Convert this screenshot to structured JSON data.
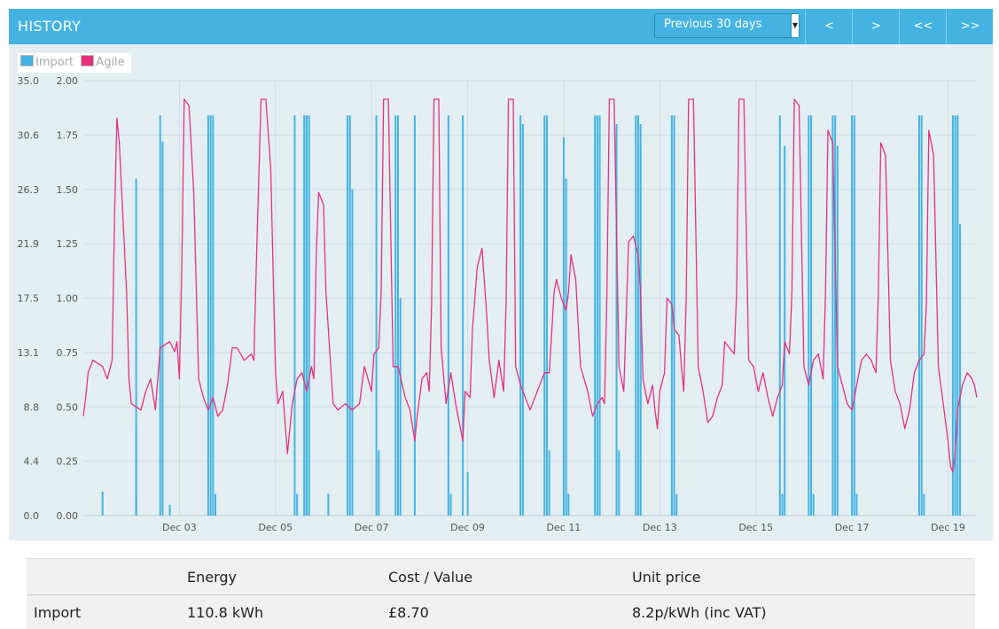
{
  "header": {
    "title": "HISTORY",
    "range_select": "Previous 30 days",
    "nav": [
      "<",
      ">",
      "<<",
      ">>"
    ]
  },
  "colors": {
    "header": "#44b3e2",
    "import": "#44b3e2",
    "agile": "#e8307c",
    "panel": "#e3eef3"
  },
  "legend": [
    {
      "name": "Import",
      "color": "#44b3e2"
    },
    {
      "name": "Agile",
      "color": "#e8307c"
    }
  ],
  "chart_data": {
    "type": "bar+line",
    "x_ticks": [
      "Dec 03",
      "Dec 05",
      "Dec 07",
      "Dec 09",
      "Dec 11",
      "Dec 13",
      "Dec 15",
      "Dec 17",
      "Dec 19"
    ],
    "x_tick_days": [
      3,
      5,
      7,
      9,
      11,
      13,
      15,
      17,
      19
    ],
    "xlim_days": [
      1.0,
      19.6
    ],
    "y_left": {
      "ticks": [
        "0.0",
        "4.4",
        "8.8",
        "13.1",
        "17.5",
        "21.9",
        "26.3",
        "30.6",
        "35.0"
      ],
      "ylim": [
        0,
        35
      ]
    },
    "y_right": {
      "ticks": [
        "0.00",
        "0.25",
        "0.50",
        "0.75",
        "1.00",
        "1.25",
        "1.50",
        "1.75",
        "2.00"
      ],
      "ylim": [
        0,
        2
      ]
    },
    "grid": true,
    "legend_position": "top-left",
    "series": [
      {
        "name": "Import",
        "type": "bar",
        "axis": "right",
        "points": [
          [
            1.4,
            0.11
          ],
          [
            2.1,
            1.55
          ],
          [
            2.1,
            0.4
          ],
          [
            2.1,
            0.1
          ],
          [
            2.6,
            1.84
          ],
          [
            2.65,
            1.72
          ],
          [
            2.8,
            0.05
          ],
          [
            3.6,
            1.84
          ],
          [
            3.65,
            1.84
          ],
          [
            3.7,
            1.84
          ],
          [
            3.75,
            0.1
          ],
          [
            5.4,
            1.84
          ],
          [
            5.45,
            0.1
          ],
          [
            5.6,
            1.84
          ],
          [
            5.6,
            1.84
          ],
          [
            5.65,
            1.84
          ],
          [
            5.7,
            1.84
          ],
          [
            6.5,
            1.84
          ],
          [
            6.55,
            1.84
          ],
          [
            6.6,
            1.5
          ],
          [
            6.1,
            0.1
          ],
          [
            7.1,
            1.84
          ],
          [
            7.15,
            0.3
          ],
          [
            7.5,
            1.84
          ],
          [
            7.55,
            1.84
          ],
          [
            7.6,
            1.0
          ],
          [
            7.9,
            1.84
          ],
          [
            8.6,
            1.84
          ],
          [
            8.65,
            0.1
          ],
          [
            8.9,
            1.84
          ],
          [
            9.0,
            0.2
          ],
          [
            10.1,
            1.84
          ],
          [
            10.15,
            1.8
          ],
          [
            10.6,
            1.84
          ],
          [
            10.65,
            1.84
          ],
          [
            10.7,
            0.3
          ],
          [
            11.0,
            1.74
          ],
          [
            11.05,
            1.55
          ],
          [
            11.1,
            0.1
          ],
          [
            11.65,
            1.84
          ],
          [
            11.7,
            1.84
          ],
          [
            11.75,
            1.84
          ],
          [
            12.1,
            1.8
          ],
          [
            12.15,
            0.3
          ],
          [
            12.5,
            1.84
          ],
          [
            12.55,
            1.84
          ],
          [
            12.6,
            1.8
          ],
          [
            12.6,
            1.7
          ],
          [
            13.25,
            1.84
          ],
          [
            13.3,
            1.84
          ],
          [
            13.35,
            0.1
          ],
          [
            15.5,
            1.84
          ],
          [
            15.55,
            0.1
          ],
          [
            15.6,
            1.7
          ],
          [
            16.1,
            1.84
          ],
          [
            16.15,
            1.84
          ],
          [
            16.2,
            0.1
          ],
          [
            16.6,
            1.84
          ],
          [
            16.65,
            1.84
          ],
          [
            16.7,
            1.7
          ],
          [
            17.0,
            1.84
          ],
          [
            17.05,
            1.84
          ],
          [
            17.1,
            0.1
          ],
          [
            18.4,
            1.84
          ],
          [
            18.45,
            1.84
          ],
          [
            18.5,
            0.1
          ],
          [
            19.1,
            1.84
          ],
          [
            19.15,
            1.84
          ],
          [
            19.2,
            1.84
          ],
          [
            19.25,
            1.34
          ]
        ]
      },
      {
        "name": "Agile",
        "type": "line",
        "axis": "left",
        "points": [
          [
            1.0,
            8.0
          ],
          [
            1.05,
            9.5
          ],
          [
            1.1,
            11.5
          ],
          [
            1.2,
            12.5
          ],
          [
            1.4,
            12.0
          ],
          [
            1.5,
            11.0
          ],
          [
            1.6,
            12.5
          ],
          [
            1.65,
            24.0
          ],
          [
            1.7,
            32.0
          ],
          [
            1.75,
            30.0
          ],
          [
            1.9,
            18.0
          ],
          [
            1.95,
            11.0
          ],
          [
            2.0,
            9.0
          ],
          [
            2.2,
            8.5
          ],
          [
            2.3,
            10.0
          ],
          [
            2.4,
            11.0
          ],
          [
            2.5,
            8.5
          ],
          [
            2.6,
            13.5
          ],
          [
            2.8,
            14.0
          ],
          [
            2.9,
            13.2
          ],
          [
            2.95,
            14.0
          ],
          [
            3.0,
            11.0
          ],
          [
            3.05,
            20.0
          ],
          [
            3.1,
            33.5
          ],
          [
            3.2,
            33.0
          ],
          [
            3.3,
            26.0
          ],
          [
            3.4,
            11.0
          ],
          [
            3.5,
            9.5
          ],
          [
            3.6,
            8.5
          ],
          [
            3.7,
            9.5
          ],
          [
            3.8,
            8.0
          ],
          [
            3.9,
            8.5
          ],
          [
            4.0,
            10.5
          ],
          [
            4.1,
            13.5
          ],
          [
            4.2,
            13.5
          ],
          [
            4.35,
            12.5
          ],
          [
            4.5,
            13.0
          ],
          [
            4.55,
            12.5
          ],
          [
            4.6,
            20.0
          ],
          [
            4.7,
            33.5
          ],
          [
            4.8,
            33.5
          ],
          [
            4.9,
            28.0
          ],
          [
            5.0,
            11.5
          ],
          [
            5.05,
            9.0
          ],
          [
            5.15,
            10.0
          ],
          [
            5.25,
            5.0
          ],
          [
            5.35,
            9.0
          ],
          [
            5.45,
            11.0
          ],
          [
            5.55,
            11.5
          ],
          [
            5.65,
            10.0
          ],
          [
            5.75,
            12.0
          ],
          [
            5.8,
            11.0
          ],
          [
            5.85,
            21.0
          ],
          [
            5.9,
            26.0
          ],
          [
            6.0,
            25.0
          ],
          [
            6.05,
            18.0
          ],
          [
            6.2,
            9.0
          ],
          [
            6.3,
            8.5
          ],
          [
            6.45,
            9.0
          ],
          [
            6.6,
            8.5
          ],
          [
            6.75,
            9.0
          ],
          [
            6.85,
            12.0
          ],
          [
            7.0,
            10.0
          ],
          [
            7.05,
            13.0
          ],
          [
            7.15,
            13.5
          ],
          [
            7.2,
            18.0
          ],
          [
            7.25,
            33.5
          ],
          [
            7.35,
            33.5
          ],
          [
            7.45,
            12.0
          ],
          [
            7.55,
            12.0
          ],
          [
            7.7,
            9.5
          ],
          [
            7.8,
            8.5
          ],
          [
            7.9,
            6.0
          ],
          [
            7.95,
            8.0
          ],
          [
            8.05,
            11.0
          ],
          [
            8.15,
            11.5
          ],
          [
            8.2,
            10.0
          ],
          [
            8.25,
            17.0
          ],
          [
            8.3,
            33.5
          ],
          [
            8.4,
            33.5
          ],
          [
            8.45,
            13.5
          ],
          [
            8.55,
            9.0
          ],
          [
            8.65,
            11.5
          ],
          [
            8.75,
            9.0
          ],
          [
            8.9,
            6.0
          ],
          [
            8.95,
            10.0
          ],
          [
            9.05,
            9.5
          ],
          [
            9.1,
            15.0
          ],
          [
            9.2,
            20.0
          ],
          [
            9.3,
            21.5
          ],
          [
            9.4,
            16.0
          ],
          [
            9.45,
            12.5
          ],
          [
            9.55,
            9.5
          ],
          [
            9.65,
            12.5
          ],
          [
            9.75,
            10.0
          ],
          [
            9.8,
            17.0
          ],
          [
            9.85,
            33.5
          ],
          [
            9.95,
            33.5
          ],
          [
            10.0,
            12.0
          ],
          [
            10.1,
            10.5
          ],
          [
            10.2,
            9.5
          ],
          [
            10.3,
            8.5
          ],
          [
            10.4,
            9.5
          ],
          [
            10.5,
            10.5
          ],
          [
            10.6,
            11.5
          ],
          [
            10.7,
            11.5
          ],
          [
            10.8,
            18.0
          ],
          [
            10.85,
            19.0
          ],
          [
            10.95,
            17.5
          ],
          [
            11.05,
            16.5
          ],
          [
            11.1,
            18.0
          ],
          [
            11.15,
            21.0
          ],
          [
            11.25,
            19.0
          ],
          [
            11.35,
            12.0
          ],
          [
            11.5,
            10.0
          ],
          [
            11.6,
            8.0
          ],
          [
            11.7,
            9.0
          ],
          [
            11.8,
            9.5
          ],
          [
            11.85,
            9.0
          ],
          [
            11.9,
            18.0
          ],
          [
            11.95,
            33.5
          ],
          [
            12.05,
            33.5
          ],
          [
            12.15,
            12.0
          ],
          [
            12.25,
            10.0
          ],
          [
            12.35,
            22.0
          ],
          [
            12.45,
            22.5
          ],
          [
            12.55,
            21.0
          ],
          [
            12.6,
            18.0
          ],
          [
            12.65,
            11.0
          ],
          [
            12.75,
            9.0
          ],
          [
            12.85,
            10.5
          ],
          [
            12.9,
            8.5
          ],
          [
            12.95,
            7.0
          ],
          [
            13.0,
            10.0
          ],
          [
            13.1,
            11.5
          ],
          [
            13.15,
            17.5
          ],
          [
            13.25,
            17.0
          ],
          [
            13.3,
            15.0
          ],
          [
            13.4,
            14.5
          ],
          [
            13.45,
            12.0
          ],
          [
            13.5,
            10.0
          ],
          [
            13.55,
            17.5
          ],
          [
            13.6,
            33.5
          ],
          [
            13.7,
            33.5
          ],
          [
            13.8,
            12.0
          ],
          [
            13.9,
            10.0
          ],
          [
            14.0,
            7.5
          ],
          [
            14.1,
            8.0
          ],
          [
            14.2,
            9.5
          ],
          [
            14.3,
            10.5
          ],
          [
            14.35,
            14.0
          ],
          [
            14.45,
            13.5
          ],
          [
            14.55,
            13.0
          ],
          [
            14.6,
            18.0
          ],
          [
            14.65,
            33.5
          ],
          [
            14.75,
            33.5
          ],
          [
            14.85,
            12.5
          ],
          [
            14.95,
            12.0
          ],
          [
            15.05,
            10.0
          ],
          [
            15.15,
            11.5
          ],
          [
            15.25,
            9.5
          ],
          [
            15.35,
            8.0
          ],
          [
            15.45,
            9.5
          ],
          [
            15.55,
            10.5
          ],
          [
            15.6,
            14.0
          ],
          [
            15.7,
            13.0
          ],
          [
            15.75,
            18.0
          ],
          [
            15.8,
            33.5
          ],
          [
            15.9,
            33.0
          ],
          [
            16.0,
            12.0
          ],
          [
            16.1,
            10.5
          ],
          [
            16.2,
            12.5
          ],
          [
            16.3,
            13.0
          ],
          [
            16.4,
            11.0
          ],
          [
            16.45,
            18.0
          ],
          [
            16.5,
            31.0
          ],
          [
            16.6,
            30.0
          ],
          [
            16.7,
            12.0
          ],
          [
            16.8,
            10.5
          ],
          [
            16.9,
            9.0
          ],
          [
            17.0,
            8.5
          ],
          [
            17.1,
            10.5
          ],
          [
            17.2,
            12.5
          ],
          [
            17.3,
            13.0
          ],
          [
            17.4,
            12.5
          ],
          [
            17.5,
            11.5
          ],
          [
            17.55,
            18.0
          ],
          [
            17.6,
            30.0
          ],
          [
            17.7,
            29.0
          ],
          [
            17.8,
            12.5
          ],
          [
            17.9,
            10.0
          ],
          [
            18.0,
            9.0
          ],
          [
            18.1,
            7.0
          ],
          [
            18.2,
            8.5
          ],
          [
            18.3,
            11.5
          ],
          [
            18.4,
            12.5
          ],
          [
            18.5,
            13.0
          ],
          [
            18.55,
            17.0
          ],
          [
            18.6,
            31.0
          ],
          [
            18.7,
            29.0
          ],
          [
            18.8,
            12.0
          ],
          [
            18.9,
            9.0
          ],
          [
            19.0,
            6.0
          ],
          [
            19.05,
            4.0
          ],
          [
            19.1,
            3.5
          ],
          [
            19.15,
            5.0
          ],
          [
            19.2,
            8.5
          ],
          [
            19.3,
            10.5
          ],
          [
            19.4,
            11.5
          ],
          [
            19.5,
            11.0
          ],
          [
            19.55,
            10.5
          ],
          [
            19.6,
            9.5
          ]
        ]
      }
    ]
  },
  "summary": {
    "headers": [
      "",
      "Energy",
      "Cost / Value",
      "Unit price"
    ],
    "rows": [
      [
        "Import",
        "110.8 kWh",
        "£8.70",
        "8.2p/kWh (inc VAT)"
      ]
    ]
  }
}
